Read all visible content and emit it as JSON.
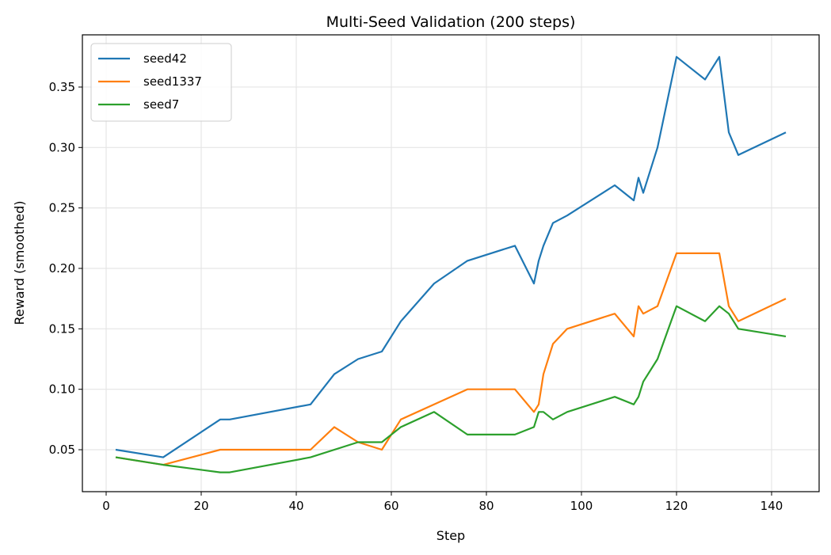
{
  "chart_data": {
    "type": "line",
    "title": "Multi-Seed Validation (200 steps)",
    "xlabel": "Step",
    "ylabel": "Reward (smoothed)",
    "xlim": [
      -5,
      150
    ],
    "ylim": [
      0.0153,
      0.3932
    ],
    "xticks": [
      0,
      20,
      40,
      60,
      80,
      100,
      120,
      140
    ],
    "yticks": [
      0.05,
      0.1,
      0.15,
      0.2,
      0.25,
      0.3,
      0.35
    ],
    "ytick_labels": [
      "0.05",
      "0.10",
      "0.15",
      "0.20",
      "0.25",
      "0.30",
      "0.35"
    ],
    "grid": true,
    "legend_position": "top-left",
    "series": [
      {
        "name": "seed42",
        "color": "#1f77b4",
        "x": [
          2,
          12,
          24,
          26,
          43,
          48,
          53,
          58,
          62,
          69,
          76,
          86,
          90,
          91,
          92,
          94,
          97,
          107,
          111,
          112,
          113,
          116,
          120,
          126,
          129,
          131,
          133,
          143
        ],
        "y": [
          0.05,
          0.04375,
          0.075,
          0.075,
          0.0875,
          0.1125,
          0.125,
          0.13125,
          0.15625,
          0.1875,
          0.20625,
          0.21875,
          0.1875,
          0.20625,
          0.21875,
          0.2375,
          0.24375,
          0.26875,
          0.25625,
          0.275,
          0.2625,
          0.3,
          0.375,
          0.35625,
          0.375,
          0.3125,
          0.29375,
          0.3125
        ]
      },
      {
        "name": "seed1337",
        "color": "#ff7f0e",
        "x": [
          2,
          12,
          24,
          43,
          48,
          53,
          58,
          62,
          76,
          86,
          90,
          91,
          92,
          94,
          97,
          107,
          111,
          112,
          113,
          116,
          120,
          129,
          131,
          133,
          143
        ],
        "y": [
          0.04375,
          0.0375,
          0.05,
          0.05,
          0.06875,
          0.05625,
          0.05,
          0.075,
          0.1,
          0.1,
          0.08125,
          0.0875,
          0.1125,
          0.1375,
          0.15,
          0.1625,
          0.14375,
          0.16875,
          0.1625,
          0.16875,
          0.2125,
          0.2125,
          0.16875,
          0.15625,
          0.175
        ]
      },
      {
        "name": "seed7",
        "color": "#2ca02c",
        "x": [
          2,
          12,
          24,
          26,
          43,
          53,
          58,
          62,
          69,
          76,
          86,
          90,
          91,
          92,
          94,
          97,
          107,
          111,
          112,
          113,
          116,
          120,
          126,
          129,
          131,
          133,
          143
        ],
        "y": [
          0.04375,
          0.0375,
          0.03125,
          0.03125,
          0.04375,
          0.05625,
          0.05625,
          0.06875,
          0.08125,
          0.0625,
          0.0625,
          0.06875,
          0.08125,
          0.08125,
          0.075,
          0.08125,
          0.09375,
          0.0875,
          0.09375,
          0.10625,
          0.125,
          0.16875,
          0.15625,
          0.16875,
          0.1625,
          0.15,
          0.14375
        ]
      }
    ]
  }
}
